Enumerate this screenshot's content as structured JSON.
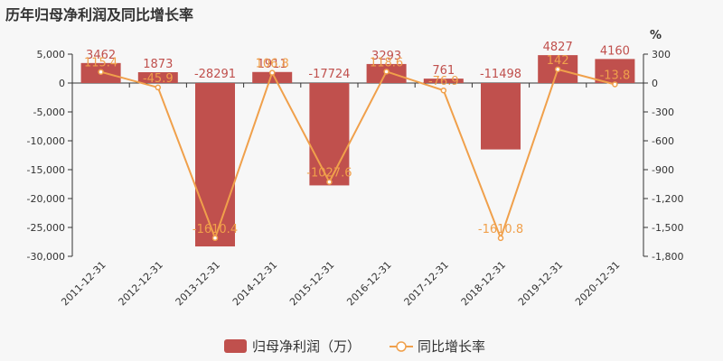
{
  "title": "历年归母净利润及同比增长率",
  "chart_data": {
    "type": "bar",
    "categories": [
      "2011-12-31",
      "2012-12-31",
      "2013-12-31",
      "2014-12-31",
      "2015-12-31",
      "2016-12-31",
      "2017-12-31",
      "2018-12-31",
      "2019-12-31",
      "2020-12-31"
    ],
    "series": [
      {
        "name": "归母净利润（万）",
        "type": "bar",
        "axis": "left",
        "values": [
          3462,
          1873,
          -28291,
          1911,
          -17724,
          3293,
          761,
          -11498,
          4827,
          4160
        ],
        "labels": [
          "3462",
          "1873",
          "-28291",
          "1911",
          "-17724",
          "3293",
          "761",
          "-11498",
          "4827",
          "4160"
        ],
        "color": "#c0504d"
      },
      {
        "name": "同比增长率",
        "type": "line",
        "axis": "right",
        "values": [
          115.4,
          -45.9,
          -1610.4,
          106.8,
          -1027.6,
          118.6,
          -76.9,
          -1610.8,
          142,
          -13.8
        ],
        "labels": [
          "115.4",
          "-45.9",
          "-1610.4",
          "106.8",
          "-1027.6",
          "118.6",
          "-76.9",
          "-1610.8",
          "142",
          "-13.8"
        ],
        "color": "#f0a04b"
      }
    ],
    "y_left": {
      "ylim": [
        -30000,
        5000
      ],
      "ticks": [
        "5,000",
        "0",
        "-5,000",
        "-10,000",
        "-15,000",
        "-20,000",
        "-25,000",
        "-30,000"
      ],
      "tick_values": [
        5000,
        0,
        -5000,
        -10000,
        -15000,
        -20000,
        -25000,
        -30000
      ]
    },
    "y_right": {
      "label": "%",
      "ylim": [
        -1800,
        300
      ],
      "ticks": [
        "300",
        "0",
        "-300",
        "-600",
        "-900",
        "-1,200",
        "-1,500",
        "-1,800"
      ],
      "tick_values": [
        300,
        0,
        -300,
        -600,
        -900,
        -1200,
        -1500,
        -1800
      ]
    },
    "grid": false,
    "legend": "bottom-center"
  }
}
